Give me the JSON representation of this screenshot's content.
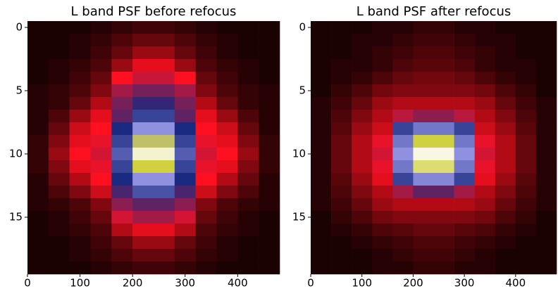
{
  "chart_data": [
    {
      "type": "heatmap",
      "title": "L band PSF before refocus",
      "xbins": [
        0,
        40,
        80,
        120,
        160,
        200,
        240,
        280,
        320,
        360,
        400,
        440,
        480
      ],
      "y": [
        0,
        1,
        2,
        3,
        4,
        5,
        6,
        7,
        8,
        9,
        10,
        11,
        12,
        13,
        14,
        15,
        16,
        17,
        18,
        19
      ],
      "xlim": [
        0,
        480
      ],
      "ylim": [
        19.5,
        -0.5
      ],
      "xticks": [
        0,
        100,
        200,
        300,
        400
      ],
      "yticks": [
        0,
        5,
        10,
        15
      ],
      "colormap": [
        "#000000",
        "#ff1020",
        "#1a2a80",
        "#9090e0",
        "#d0d040",
        "#ffffff"
      ],
      "values": [
        [
          0.02,
          0.02,
          0.02,
          0.03,
          0.04,
          0.05,
          0.05,
          0.04,
          0.03,
          0.02,
          0.02,
          0.02
        ],
        [
          0.02,
          0.02,
          0.03,
          0.04,
          0.06,
          0.08,
          0.08,
          0.06,
          0.04,
          0.03,
          0.02,
          0.02
        ],
        [
          0.02,
          0.02,
          0.03,
          0.05,
          0.08,
          0.12,
          0.12,
          0.08,
          0.05,
          0.03,
          0.02,
          0.02
        ],
        [
          0.02,
          0.03,
          0.04,
          0.06,
          0.12,
          0.18,
          0.18,
          0.12,
          0.06,
          0.04,
          0.03,
          0.02
        ],
        [
          0.02,
          0.03,
          0.05,
          0.08,
          0.2,
          0.25,
          0.25,
          0.2,
          0.08,
          0.05,
          0.03,
          0.02
        ],
        [
          0.03,
          0.04,
          0.06,
          0.1,
          0.28,
          0.32,
          0.32,
          0.28,
          0.1,
          0.06,
          0.04,
          0.03
        ],
        [
          0.03,
          0.04,
          0.08,
          0.14,
          0.32,
          0.38,
          0.38,
          0.32,
          0.14,
          0.08,
          0.04,
          0.03
        ],
        [
          0.03,
          0.06,
          0.12,
          0.18,
          0.34,
          0.45,
          0.45,
          0.34,
          0.18,
          0.12,
          0.06,
          0.03
        ],
        [
          0.03,
          0.08,
          0.16,
          0.2,
          0.4,
          0.6,
          0.6,
          0.4,
          0.2,
          0.16,
          0.08,
          0.03
        ],
        [
          0.04,
          0.1,
          0.18,
          0.22,
          0.45,
          0.75,
          0.75,
          0.45,
          0.22,
          0.18,
          0.1,
          0.04
        ],
        [
          0.04,
          0.12,
          0.2,
          0.24,
          0.5,
          0.95,
          0.95,
          0.5,
          0.24,
          0.2,
          0.12,
          0.04
        ],
        [
          0.04,
          0.1,
          0.18,
          0.22,
          0.45,
          0.8,
          0.8,
          0.45,
          0.22,
          0.18,
          0.1,
          0.04
        ],
        [
          0.03,
          0.08,
          0.14,
          0.2,
          0.4,
          0.6,
          0.6,
          0.4,
          0.2,
          0.14,
          0.08,
          0.03
        ],
        [
          0.03,
          0.06,
          0.1,
          0.16,
          0.36,
          0.48,
          0.48,
          0.36,
          0.16,
          0.1,
          0.06,
          0.03
        ],
        [
          0.03,
          0.04,
          0.06,
          0.1,
          0.3,
          0.34,
          0.34,
          0.3,
          0.1,
          0.06,
          0.04,
          0.03
        ],
        [
          0.02,
          0.03,
          0.05,
          0.08,
          0.24,
          0.28,
          0.28,
          0.24,
          0.08,
          0.05,
          0.03,
          0.02
        ],
        [
          0.02,
          0.03,
          0.04,
          0.06,
          0.14,
          0.18,
          0.18,
          0.14,
          0.06,
          0.04,
          0.03,
          0.02
        ],
        [
          0.02,
          0.02,
          0.03,
          0.05,
          0.08,
          0.12,
          0.12,
          0.08,
          0.05,
          0.03,
          0.02,
          0.02
        ],
        [
          0.02,
          0.02,
          0.03,
          0.04,
          0.06,
          0.08,
          0.08,
          0.06,
          0.04,
          0.03,
          0.02,
          0.02
        ],
        [
          0.02,
          0.02,
          0.02,
          0.03,
          0.04,
          0.05,
          0.05,
          0.04,
          0.03,
          0.02,
          0.02,
          0.02
        ]
      ]
    },
    {
      "type": "heatmap",
      "title": "L band PSF after refocus",
      "xbins": [
        0,
        40,
        80,
        120,
        160,
        200,
        240,
        280,
        320,
        360,
        400,
        440,
        480
      ],
      "y": [
        0,
        1,
        2,
        3,
        4,
        5,
        6,
        7,
        8,
        9,
        10,
        11,
        12,
        13,
        14,
        15,
        16,
        17,
        18,
        19
      ],
      "xlim": [
        0,
        480
      ],
      "ylim": [
        19.5,
        -0.5
      ],
      "xticks": [
        0,
        100,
        200,
        300,
        400
      ],
      "yticks": [
        0,
        5,
        10,
        15
      ],
      "colormap": [
        "#000000",
        "#ff1020",
        "#1a2a80",
        "#9090e0",
        "#d0d040",
        "#ffffff"
      ],
      "values": [
        [
          0.02,
          0.02,
          0.02,
          0.03,
          0.03,
          0.04,
          0.04,
          0.03,
          0.03,
          0.02,
          0.02,
          0.02
        ],
        [
          0.02,
          0.02,
          0.03,
          0.03,
          0.04,
          0.05,
          0.05,
          0.04,
          0.03,
          0.03,
          0.02,
          0.02
        ],
        [
          0.02,
          0.02,
          0.03,
          0.04,
          0.05,
          0.06,
          0.06,
          0.05,
          0.04,
          0.03,
          0.02,
          0.02
        ],
        [
          0.02,
          0.03,
          0.03,
          0.04,
          0.06,
          0.07,
          0.07,
          0.06,
          0.04,
          0.03,
          0.03,
          0.02
        ],
        [
          0.02,
          0.03,
          0.04,
          0.06,
          0.08,
          0.09,
          0.09,
          0.08,
          0.06,
          0.04,
          0.03,
          0.02
        ],
        [
          0.02,
          0.04,
          0.06,
          0.09,
          0.1,
          0.1,
          0.1,
          0.1,
          0.09,
          0.06,
          0.04,
          0.02
        ],
        [
          0.03,
          0.05,
          0.08,
          0.12,
          0.14,
          0.14,
          0.14,
          0.14,
          0.12,
          0.08,
          0.05,
          0.03
        ],
        [
          0.03,
          0.06,
          0.1,
          0.14,
          0.26,
          0.3,
          0.3,
          0.26,
          0.14,
          0.1,
          0.06,
          0.03
        ],
        [
          0.03,
          0.07,
          0.12,
          0.16,
          0.45,
          0.55,
          0.55,
          0.45,
          0.16,
          0.12,
          0.07,
          0.03
        ],
        [
          0.03,
          0.08,
          0.14,
          0.22,
          0.55,
          0.8,
          0.8,
          0.55,
          0.22,
          0.14,
          0.08,
          0.03
        ],
        [
          0.03,
          0.08,
          0.14,
          0.24,
          0.6,
          0.97,
          0.97,
          0.6,
          0.24,
          0.14,
          0.08,
          0.03
        ],
        [
          0.03,
          0.08,
          0.14,
          0.22,
          0.55,
          0.85,
          0.85,
          0.55,
          0.22,
          0.14,
          0.08,
          0.03
        ],
        [
          0.03,
          0.07,
          0.12,
          0.18,
          0.45,
          0.58,
          0.58,
          0.45,
          0.18,
          0.12,
          0.07,
          0.03
        ],
        [
          0.03,
          0.06,
          0.1,
          0.14,
          0.28,
          0.34,
          0.34,
          0.28,
          0.14,
          0.1,
          0.06,
          0.03
        ],
        [
          0.03,
          0.05,
          0.08,
          0.12,
          0.14,
          0.14,
          0.14,
          0.14,
          0.12,
          0.08,
          0.05,
          0.03
        ],
        [
          0.02,
          0.04,
          0.06,
          0.09,
          0.1,
          0.1,
          0.1,
          0.1,
          0.09,
          0.06,
          0.04,
          0.02
        ],
        [
          0.02,
          0.03,
          0.04,
          0.06,
          0.07,
          0.08,
          0.08,
          0.07,
          0.06,
          0.04,
          0.03,
          0.02
        ],
        [
          0.02,
          0.02,
          0.03,
          0.04,
          0.05,
          0.06,
          0.06,
          0.05,
          0.04,
          0.03,
          0.02,
          0.02
        ],
        [
          0.02,
          0.02,
          0.02,
          0.03,
          0.04,
          0.05,
          0.05,
          0.04,
          0.03,
          0.02,
          0.02,
          0.02
        ],
        [
          0.02,
          0.02,
          0.02,
          0.03,
          0.03,
          0.04,
          0.04,
          0.03,
          0.03,
          0.02,
          0.02,
          0.02
        ]
      ]
    }
  ]
}
